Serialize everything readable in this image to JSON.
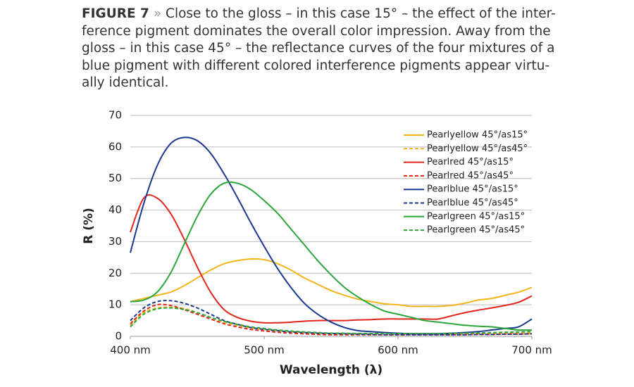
{
  "figure_label": "FIGURE 7",
  "separator": "»",
  "caption_lines": [
    "Close to the gloss – in this case 15° – the effect of the inter-",
    "ference pigment dominates the overall color impression. Away from the",
    "gloss – in this case 45° – the reflectance curves of the four mixtures of a",
    "blue pigment with different colored interference pigments appear virtu-",
    "ally identical."
  ],
  "chart_data": {
    "type": "line",
    "xlabel": "Wavelength (λ)",
    "ylabel": "R (%)",
    "xlim": [
      400,
      700
    ],
    "ylim": [
      0,
      70
    ],
    "xticks": [
      {
        "value": 400,
        "label": "400 nm"
      },
      {
        "value": 500,
        "label": "500 nm"
      },
      {
        "value": 600,
        "label": "600 nm"
      },
      {
        "value": 700,
        "label": "700 nm"
      }
    ],
    "yticks": [
      0,
      10,
      20,
      30,
      40,
      50,
      60,
      70
    ],
    "grid": true,
    "legend": "upper right",
    "x": [
      400,
      410,
      420,
      430,
      440,
      450,
      460,
      470,
      480,
      490,
      500,
      510,
      520,
      530,
      540,
      550,
      560,
      570,
      580,
      590,
      600,
      610,
      620,
      630,
      640,
      650,
      660,
      670,
      680,
      690,
      700
    ],
    "series": [
      {
        "name": "Pearlyellow 45°/as15°",
        "color": "#f2b51c",
        "linestyle": "solid",
        "values": [
          11,
          12,
          13,
          14,
          16,
          18.5,
          21,
          23,
          24,
          24.5,
          24.3,
          23,
          21,
          18.5,
          16.5,
          14.5,
          13,
          11.8,
          11,
          10.3,
          10,
          9.5,
          9.5,
          9.5,
          9.8,
          10.5,
          11.5,
          12,
          13,
          14,
          15.5
        ]
      },
      {
        "name": "Pearlyellow 45°/as45°",
        "color": "#f2b51c",
        "linestyle": "dashed",
        "values": [
          3.5,
          7.5,
          9,
          9.2,
          8.8,
          7.5,
          6,
          4.5,
          3.5,
          2.7,
          2.2,
          1.8,
          1.5,
          1.2,
          1,
          0.9,
          0.8,
          0.8,
          0.8,
          0.8,
          0.8,
          0.8,
          0.8,
          0.8,
          0.8,
          0.8,
          0.9,
          0.9,
          1,
          1,
          1
        ]
      },
      {
        "name": "Pearlred 45°/as15°",
        "color": "#e0261d",
        "linestyle": "solid",
        "values": [
          33,
          43.8,
          43.8,
          39,
          31,
          22,
          14,
          8.5,
          6,
          4.8,
          4.3,
          4.3,
          4.5,
          4.8,
          5,
          5,
          5,
          5.2,
          5.3,
          5.5,
          5.5,
          5.5,
          5.5,
          5.5,
          6.5,
          7.5,
          8.3,
          9,
          9.8,
          10.8,
          12.8
        ]
      },
      {
        "name": "Pearlred 45°/as45°",
        "color": "#e0261d",
        "linestyle": "dashed",
        "values": [
          4,
          8,
          10,
          9.8,
          8.5,
          7,
          5.5,
          4,
          3,
          2.2,
          1.7,
          1.3,
          1,
          0.8,
          0.6,
          0.5,
          0.5,
          0.5,
          0.5,
          0.5,
          0.5,
          0.5,
          0.5,
          0.5,
          0.5,
          0.5,
          0.6,
          0.6,
          0.7,
          0.7,
          0.8
        ]
      },
      {
        "name": "Pearlblue 45°/as15°",
        "color": "#1a3a8f",
        "linestyle": "solid",
        "values": [
          26.5,
          42,
          54,
          61,
          63,
          62,
          58,
          51.5,
          44,
          36,
          28.5,
          21.5,
          15.5,
          10.5,
          7,
          4.5,
          2.8,
          1.8,
          1.5,
          1.2,
          1,
          0.8,
          0.8,
          0.8,
          1,
          1.2,
          1.5,
          2,
          2.5,
          3,
          5.5
        ]
      },
      {
        "name": "Pearlblue 45°/as45°",
        "color": "#1a3a8f",
        "linestyle": "dashed",
        "values": [
          5,
          9,
          11,
          11.3,
          10.5,
          9,
          7,
          5,
          3.8,
          2.8,
          2.2,
          1.8,
          1.4,
          1.2,
          1,
          0.9,
          0.8,
          0.7,
          0.6,
          0.5,
          0.5,
          0.5,
          0.5,
          0.5,
          0.5,
          0.5,
          0.6,
          0.6,
          0.7,
          0.7,
          0.8
        ]
      },
      {
        "name": "Pearlgreen 45°/as15°",
        "color": "#2ca53a",
        "linestyle": "solid",
        "values": [
          11,
          11.5,
          14,
          20,
          29,
          38,
          45,
          48.5,
          48.5,
          46.5,
          43,
          39,
          34,
          29,
          24,
          19.5,
          15.5,
          12.5,
          10,
          8,
          7,
          6,
          5,
          4.5,
          4,
          3.5,
          3.2,
          3,
          2.5,
          2,
          2
        ]
      },
      {
        "name": "Pearlgreen 45°/as45°",
        "color": "#2ca53a",
        "linestyle": "dashed",
        "values": [
          3,
          7,
          8.7,
          9,
          8.5,
          7.5,
          6,
          4.8,
          3.8,
          3,
          2.5,
          2,
          1.7,
          1.4,
          1.2,
          1,
          1,
          0.9,
          0.9,
          0.9,
          0.9,
          0.9,
          0.9,
          0.9,
          1,
          1,
          1.1,
          1.2,
          1.3,
          1.4,
          1.5
        ]
      }
    ]
  }
}
